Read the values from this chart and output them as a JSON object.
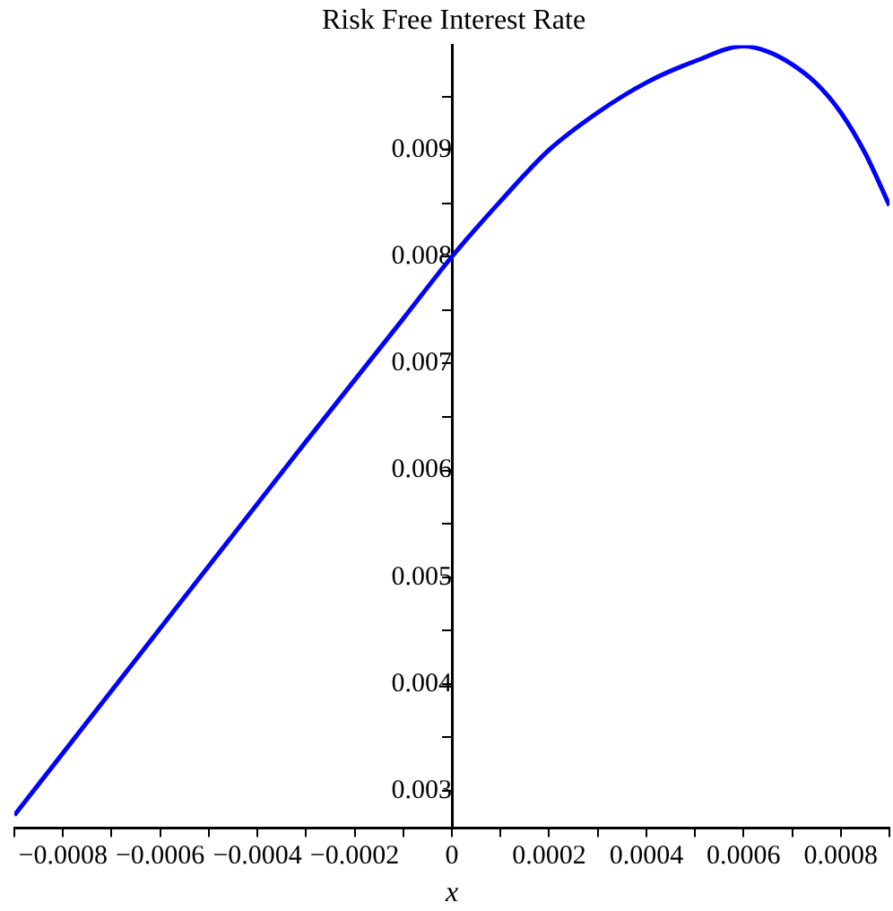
{
  "chart_data": {
    "type": "line",
    "title": "Risk Free Interest Rate",
    "xlabel": "x",
    "x": [
      -0.0009,
      -0.0006,
      -0.0003,
      -0.0001,
      0,
      0.0001,
      0.0002,
      0.0003,
      0.0004,
      0.0005,
      0.0006,
      0.00065,
      0.0007,
      0.00075,
      0.0008,
      0.00085,
      0.0009
    ],
    "series": [
      {
        "color": "#0000ff",
        "values": [
          0.00277,
          0.00452,
          0.00627,
          0.00742,
          0.008,
          0.00852,
          0.009,
          0.00935,
          0.00963,
          0.00983,
          0.00997,
          0.00992,
          0.0098,
          0.00962,
          0.00935,
          0.00897,
          0.00848
        ]
      }
    ],
    "xlim": [
      -0.0009,
      0.0009
    ],
    "ylim": [
      0.00265,
      0.00998
    ],
    "xticks": [
      {
        "value": -0.0009,
        "label": null
      },
      -0.0008,
      {
        "value": -0.0007,
        "label": null
      },
      -0.0006,
      {
        "value": -0.0005,
        "label": null
      },
      -0.0004,
      {
        "value": -0.0003,
        "label": null
      },
      -0.0002,
      {
        "value": -0.0001,
        "label": null
      },
      0,
      {
        "value": 0.0001,
        "label": null
      },
      0.0002,
      {
        "value": 0.0003,
        "label": null
      },
      0.0004,
      {
        "value": 0.0005,
        "label": null
      },
      0.0006,
      {
        "value": 0.0007,
        "label": null
      },
      0.0008,
      {
        "value": 0.0009,
        "label": null
      }
    ],
    "yticks": [
      0.003,
      {
        "value": 0.0035,
        "label": null
      },
      0.004,
      {
        "value": 0.0045,
        "label": null
      },
      0.005,
      {
        "value": 0.0055,
        "label": null
      },
      0.006,
      {
        "value": 0.0065,
        "label": null
      },
      0.007,
      {
        "value": 0.0075,
        "label": null
      },
      0.008,
      {
        "value": 0.0085,
        "label": null
      },
      0.009,
      {
        "value": 0.0095,
        "label": null
      }
    ],
    "grid": false,
    "legend": false,
    "marker": "none",
    "line_style": "solid"
  }
}
